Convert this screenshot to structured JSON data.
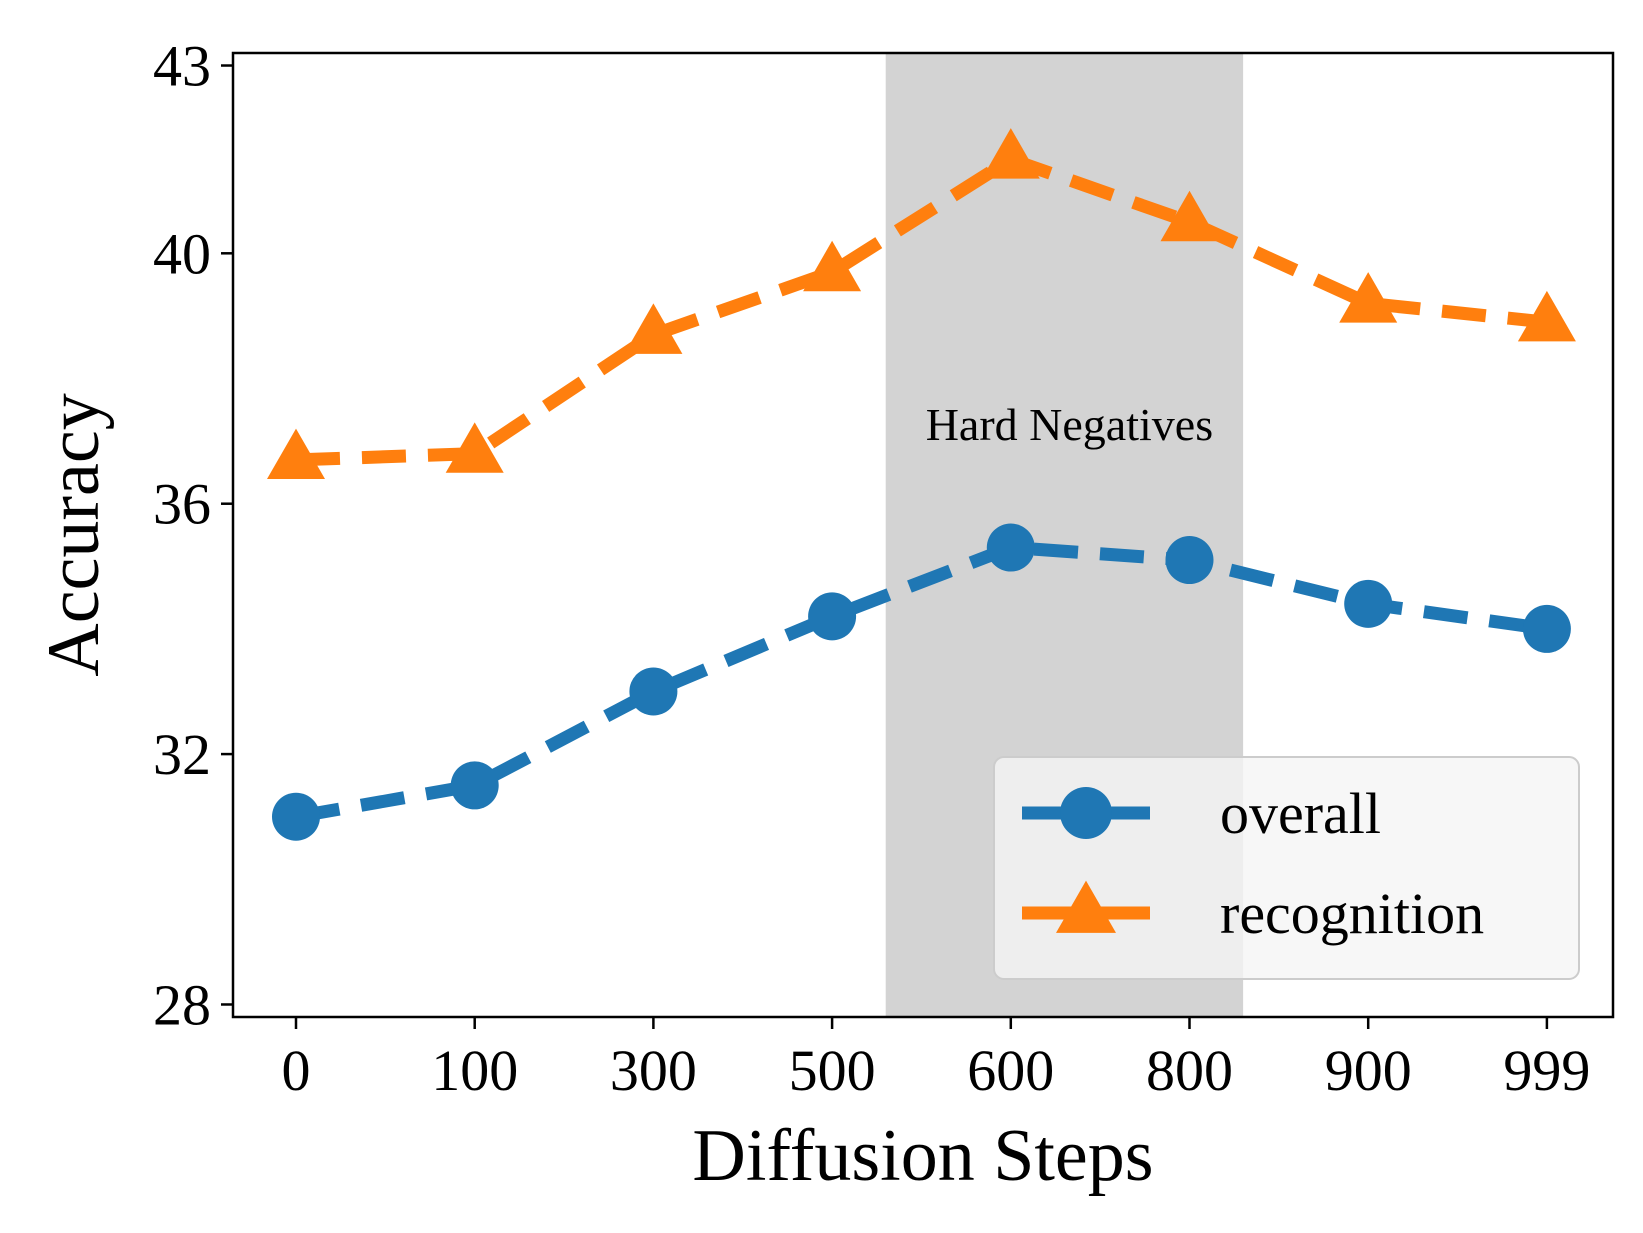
{
  "chart_data": {
    "type": "line",
    "title": "",
    "xlabel": "Diffusion Steps",
    "ylabel": "Accuracy",
    "categories": [
      "0",
      "100",
      "300",
      "500",
      "600",
      "800",
      "900",
      "999"
    ],
    "yticks": [
      28,
      32,
      36,
      40,
      43
    ],
    "ylim": [
      27.8,
      43.2
    ],
    "series": [
      {
        "name": "overall",
        "color": "#1f77b4",
        "marker": "circle",
        "linestyle": "dashed",
        "values": [
          31.0,
          31.5,
          33.0,
          34.2,
          35.3,
          35.1,
          34.4,
          34.0
        ]
      },
      {
        "name": "recognition",
        "color": "#ff7f0e",
        "marker": "triangle",
        "linestyle": "dashed",
        "values": [
          36.7,
          36.8,
          38.7,
          39.7,
          41.5,
          40.5,
          39.2,
          38.9
        ]
      }
    ],
    "shaded_region": {
      "label": "Hard Negatives",
      "x_from": 3.3,
      "x_to": 5.3,
      "color": "#d3d3d3"
    },
    "legend": {
      "placement": "lower-right",
      "entries": [
        "overall",
        "recognition"
      ]
    },
    "grid": false
  }
}
